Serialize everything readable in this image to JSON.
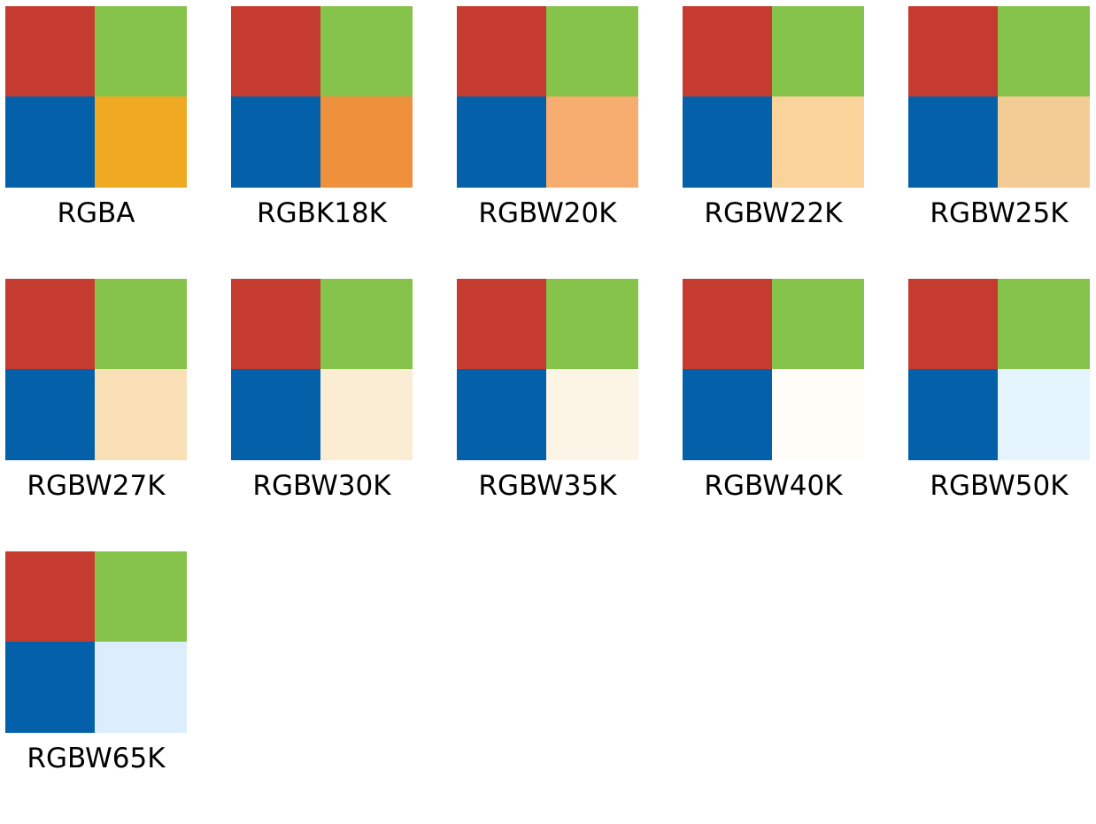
{
  "base_colors": {
    "red": "#c63b2f",
    "green": "#86c34a",
    "blue": "#0461a9"
  },
  "swatches": [
    {
      "label": "RGBA",
      "fourth_color": "#efaa22"
    },
    {
      "label": "RGBK18K",
      "fourth_color": "#ef903c"
    },
    {
      "label": "RGBW20K",
      "fourth_color": "#f8ad70"
    },
    {
      "label": "RGBW22K",
      "fourth_color": "#f9d399"
    },
    {
      "label": "RGBW25K",
      "fourth_color": "#f3cc95"
    },
    {
      "label": "RGBW27K",
      "fourth_color": "#fae0b6"
    },
    {
      "label": "RGBW30K",
      "fourth_color": "#fbedd3"
    },
    {
      "label": "RGBW35K",
      "fourth_color": "#fcf4e4"
    },
    {
      "label": "RGBW40K",
      "fourth_color": "#fffdf8"
    },
    {
      "label": "RGBW50K",
      "fourth_color": "#e4f4fc"
    },
    {
      "label": "RGBW65K",
      "fourth_color": "#dceefb"
    }
  ]
}
